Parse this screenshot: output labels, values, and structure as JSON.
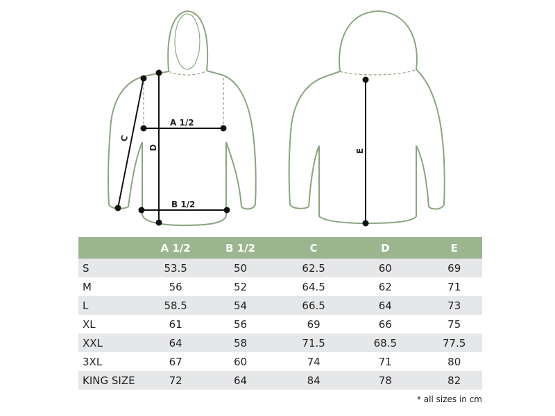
{
  "diagram": {
    "labels": {
      "a": "A 1/2",
      "b": "B 1/2",
      "c": "C",
      "d": "D",
      "e": "E"
    },
    "outline_color": "#8aa57f"
  },
  "table": {
    "header_color": "#9bb58f",
    "columns": [
      "",
      "A 1/2",
      "B 1/2",
      "C",
      "D",
      "E"
    ],
    "rows": [
      [
        "S",
        "53.5",
        "50",
        "62.5",
        "60",
        "69"
      ],
      [
        "M",
        "56",
        "52",
        "64.5",
        "62",
        "71"
      ],
      [
        "L",
        "58.5",
        "54",
        "66.5",
        "64",
        "73"
      ],
      [
        "XL",
        "61",
        "56",
        "69",
        "66",
        "75"
      ],
      [
        "XXL",
        "64",
        "58",
        "71.5",
        "68.5",
        "77.5"
      ],
      [
        "3XL",
        "67",
        "60",
        "74",
        "71",
        "80"
      ],
      [
        "KING SIZE",
        "72",
        "64",
        "84",
        "78",
        "82"
      ]
    ]
  },
  "footnote": "* all sizes in cm"
}
